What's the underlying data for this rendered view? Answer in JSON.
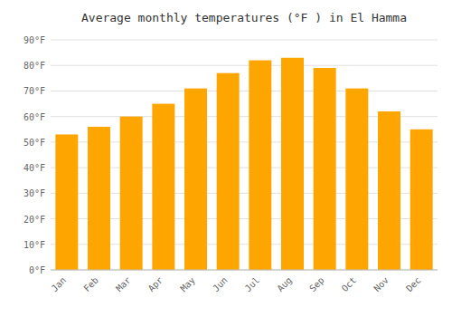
{
  "chart_data": {
    "type": "bar",
    "title": "Average monthly temperatures (°F ) in El Hamma",
    "categories": [
      "Jan",
      "Feb",
      "Mar",
      "Apr",
      "May",
      "Jun",
      "Jul",
      "Aug",
      "Sep",
      "Oct",
      "Nov",
      "Dec"
    ],
    "values": [
      53,
      56,
      60,
      65,
      71,
      77,
      82,
      83,
      79,
      71,
      62,
      55
    ],
    "color": "#FFA500",
    "ylim": [
      0,
      90
    ],
    "yticks": [
      {
        "value": 0,
        "label": "0°F"
      },
      {
        "value": 10,
        "label": "10°F"
      },
      {
        "value": 20,
        "label": "20°F"
      },
      {
        "value": 30,
        "label": "30°F"
      },
      {
        "value": 40,
        "label": "40°F"
      },
      {
        "value": 50,
        "label": "50°F"
      },
      {
        "value": 60,
        "label": "60°F"
      },
      {
        "value": 70,
        "label": "70°F"
      },
      {
        "value": 80,
        "label": "80°F"
      },
      {
        "value": 90,
        "label": "90°F"
      }
    ],
    "grid": true
  }
}
